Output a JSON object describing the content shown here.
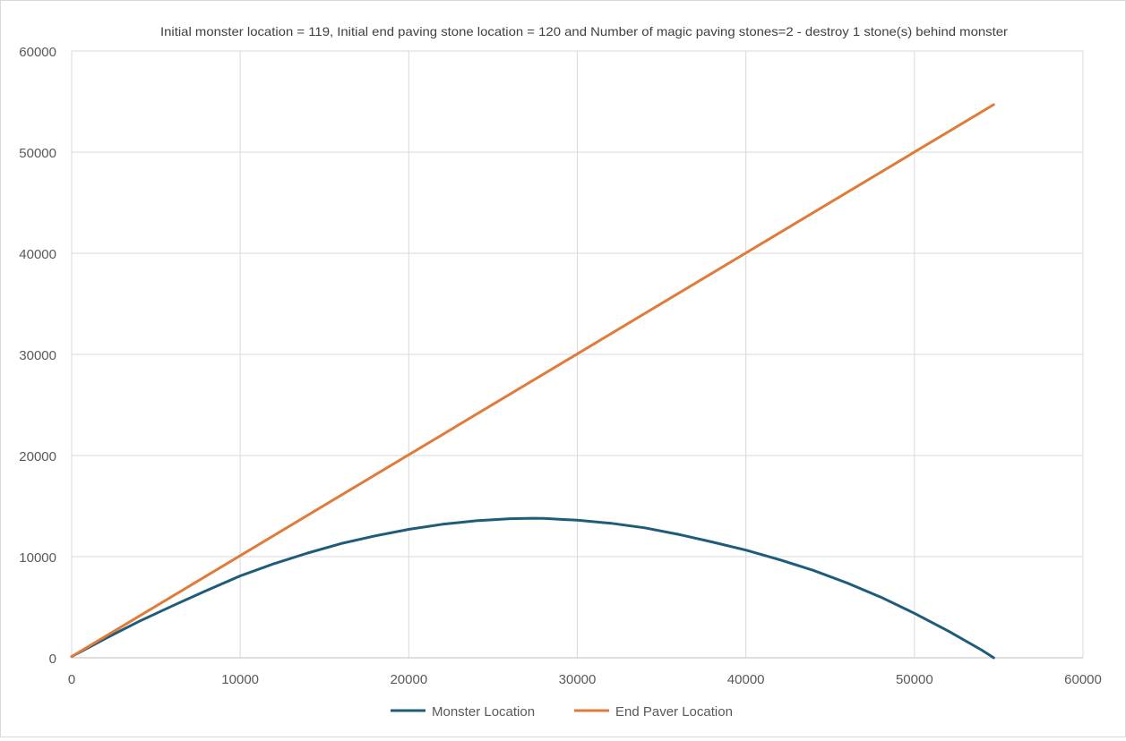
{
  "chart_data": {
    "type": "line",
    "title": "Initial monster location = 119, Initial end paving stone location = 120 and Number of magic paving stones=2 - destroy 1 stone(s) behind monster",
    "xlabel": "",
    "ylabel": "",
    "xlim": [
      0,
      60000
    ],
    "ylim": [
      0,
      60000
    ],
    "xticks": [
      0,
      10000,
      20000,
      30000,
      40000,
      50000,
      60000
    ],
    "yticks": [
      0,
      10000,
      20000,
      30000,
      40000,
      50000,
      60000
    ],
    "grid": true,
    "legend_position": "bottom",
    "series": [
      {
        "name": "Monster Location",
        "color": "#1f5c7a",
        "points": [
          [
            0,
            119
          ],
          [
            2000,
            1900
          ],
          [
            4000,
            3600
          ],
          [
            6000,
            5150
          ],
          [
            8000,
            6650
          ],
          [
            10000,
            8100
          ],
          [
            12000,
            9300
          ],
          [
            14000,
            10350
          ],
          [
            16000,
            11300
          ],
          [
            18000,
            12050
          ],
          [
            20000,
            12700
          ],
          [
            22000,
            13200
          ],
          [
            24000,
            13550
          ],
          [
            26000,
            13750
          ],
          [
            27300,
            13800
          ],
          [
            28000,
            13780
          ],
          [
            30000,
            13600
          ],
          [
            32000,
            13300
          ],
          [
            34000,
            12850
          ],
          [
            36000,
            12200
          ],
          [
            38000,
            11450
          ],
          [
            40000,
            10650
          ],
          [
            42000,
            9700
          ],
          [
            44000,
            8650
          ],
          [
            46000,
            7400
          ],
          [
            48000,
            6000
          ],
          [
            50000,
            4400
          ],
          [
            52000,
            2650
          ],
          [
            54000,
            750
          ],
          [
            54700,
            0
          ]
        ]
      },
      {
        "name": "End Paver Location",
        "color": "#e07b39",
        "points": [
          [
            0,
            120
          ],
          [
            54700,
            54700
          ]
        ]
      }
    ]
  }
}
